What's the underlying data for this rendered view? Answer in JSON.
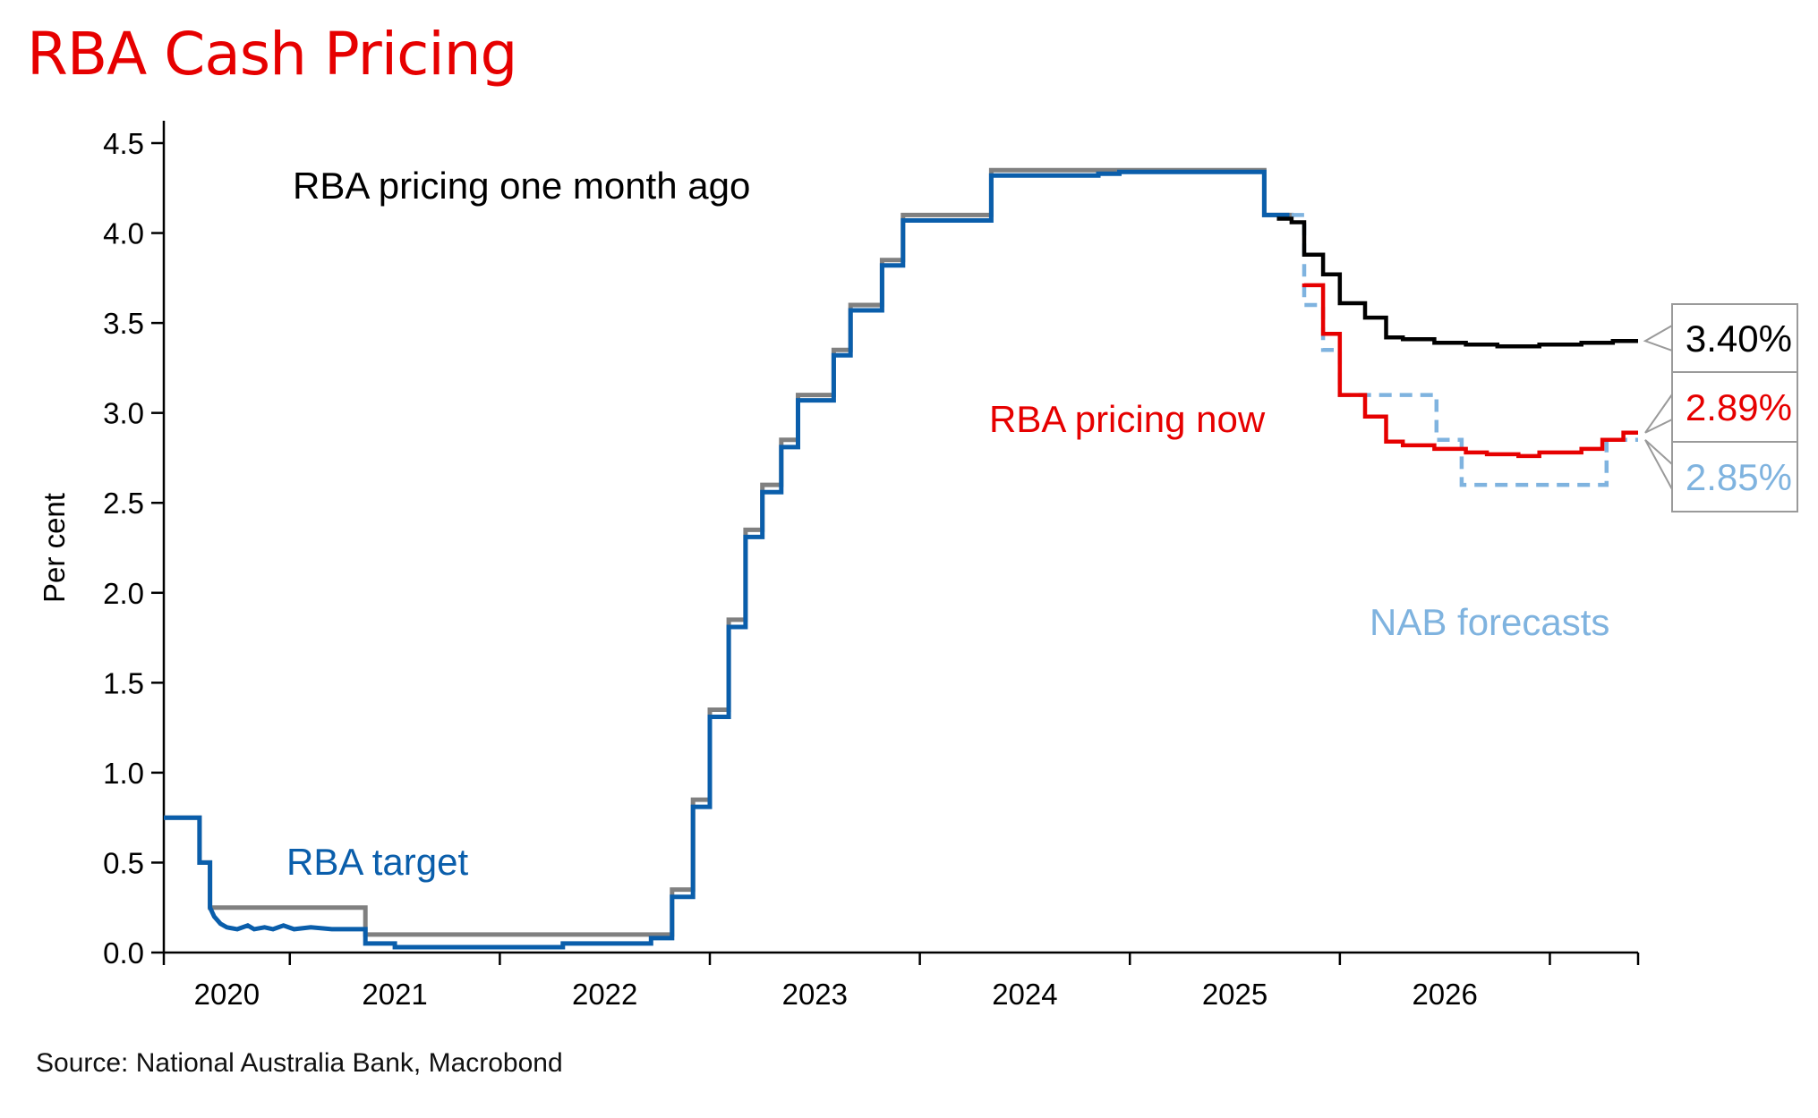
{
  "title": "RBA Cash Pricing",
  "source": "Source: National Australia Bank, Macrobond",
  "chart_data": {
    "type": "line",
    "title": "RBA Cash Pricing",
    "ylabel": "Per cent",
    "xlabel": "",
    "ylim": [
      0,
      4.5
    ],
    "xlim": [
      2019.9,
      2026.92
    ],
    "yticks": [
      "0.0",
      "0.5",
      "1.0",
      "1.5",
      "2.0",
      "2.5",
      "3.0",
      "3.5",
      "4.0",
      "4.5"
    ],
    "xticks": [
      "2020",
      "2021",
      "2022",
      "2023",
      "2024",
      "2025",
      "2026"
    ],
    "grid": false,
    "colors": {
      "rba_target": "#0a5eab",
      "pricing_month_ago": "#000000",
      "pricing_now": "#e60000",
      "nab_forecasts": "#7fb3df",
      "gray": "#808080",
      "title": "#e60000"
    },
    "annotations": {
      "rba_target": "RBA target",
      "pricing_month_ago": "RBA pricing one month ago",
      "pricing_now": "RBA pricing now",
      "nab_forecasts": "NAB forecasts"
    },
    "end_labels": {
      "pricing_month_ago": "3.40%",
      "pricing_now": "2.89%",
      "nab_forecasts": "2.85%"
    },
    "series": [
      {
        "key": "rba_target_gray",
        "style": "step",
        "points": [
          [
            2019.9,
            0.75
          ],
          [
            2020.07,
            0.75
          ],
          [
            2020.07,
            0.5
          ],
          [
            2020.12,
            0.5
          ],
          [
            2020.12,
            0.25
          ],
          [
            2020.86,
            0.25
          ],
          [
            2020.86,
            0.1
          ],
          [
            2021.12,
            0.1
          ],
          [
            2022.32,
            0.1
          ],
          [
            2022.32,
            0.35
          ],
          [
            2022.42,
            0.35
          ],
          [
            2022.42,
            0.85
          ],
          [
            2022.5,
            0.85
          ],
          [
            2022.5,
            1.35
          ],
          [
            2022.59,
            1.35
          ],
          [
            2022.59,
            1.85
          ],
          [
            2022.67,
            1.85
          ],
          [
            2022.67,
            2.35
          ],
          [
            2022.75,
            2.35
          ],
          [
            2022.75,
            2.6
          ],
          [
            2022.84,
            2.6
          ],
          [
            2022.84,
            2.85
          ],
          [
            2022.92,
            2.85
          ],
          [
            2022.92,
            3.1
          ],
          [
            2023.09,
            3.1
          ],
          [
            2023.09,
            3.35
          ],
          [
            2023.17,
            3.35
          ],
          [
            2023.17,
            3.6
          ],
          [
            2023.32,
            3.6
          ],
          [
            2023.32,
            3.85
          ],
          [
            2023.42,
            3.85
          ],
          [
            2023.42,
            4.1
          ],
          [
            2023.84,
            4.1
          ],
          [
            2023.84,
            4.35
          ],
          [
            2025.14,
            4.35
          ],
          [
            2025.14,
            4.1
          ],
          [
            2025.28,
            4.1
          ]
        ]
      },
      {
        "key": "rba_target",
        "style": "step",
        "points": [
          [
            2019.9,
            0.75
          ],
          [
            2020.07,
            0.75
          ],
          [
            2020.07,
            0.5
          ],
          [
            2020.12,
            0.5
          ],
          [
            2020.12,
            0.25
          ],
          [
            2020.14,
            0.2
          ],
          [
            2020.17,
            0.16
          ],
          [
            2020.2,
            0.14
          ],
          [
            2020.25,
            0.13
          ],
          [
            2020.3,
            0.15
          ],
          [
            2020.33,
            0.13
          ],
          [
            2020.38,
            0.14
          ],
          [
            2020.42,
            0.13
          ],
          [
            2020.47,
            0.15
          ],
          [
            2020.52,
            0.13
          ],
          [
            2020.6,
            0.14
          ],
          [
            2020.7,
            0.13
          ],
          [
            2020.86,
            0.13
          ],
          [
            2020.86,
            0.05
          ],
          [
            2021.0,
            0.05
          ],
          [
            2021.0,
            0.03
          ],
          [
            2021.8,
            0.03
          ],
          [
            2021.8,
            0.05
          ],
          [
            2022.22,
            0.05
          ],
          [
            2022.22,
            0.08
          ],
          [
            2022.32,
            0.08
          ],
          [
            2022.32,
            0.31
          ],
          [
            2022.42,
            0.31
          ],
          [
            2022.42,
            0.81
          ],
          [
            2022.5,
            0.81
          ],
          [
            2022.5,
            1.31
          ],
          [
            2022.59,
            1.31
          ],
          [
            2022.59,
            1.81
          ],
          [
            2022.67,
            1.81
          ],
          [
            2022.67,
            2.31
          ],
          [
            2022.75,
            2.31
          ],
          [
            2022.75,
            2.56
          ],
          [
            2022.84,
            2.56
          ],
          [
            2022.84,
            2.81
          ],
          [
            2022.92,
            2.81
          ],
          [
            2022.92,
            3.07
          ],
          [
            2023.09,
            3.07
          ],
          [
            2023.09,
            3.32
          ],
          [
            2023.17,
            3.32
          ],
          [
            2023.17,
            3.57
          ],
          [
            2023.32,
            3.57
          ],
          [
            2023.32,
            3.82
          ],
          [
            2023.42,
            3.82
          ],
          [
            2023.42,
            4.07
          ],
          [
            2023.84,
            4.07
          ],
          [
            2023.84,
            4.32
          ],
          [
            2024.35,
            4.32
          ],
          [
            2024.35,
            4.33
          ],
          [
            2024.45,
            4.33
          ],
          [
            2024.45,
            4.34
          ],
          [
            2025.14,
            4.34
          ],
          [
            2025.14,
            4.1
          ],
          [
            2025.26,
            4.1
          ]
        ]
      },
      {
        "key": "pricing_month_ago",
        "style": "step",
        "points": [
          [
            2025.2,
            4.08
          ],
          [
            2025.27,
            4.08
          ],
          [
            2025.27,
            4.06
          ],
          [
            2025.33,
            4.06
          ],
          [
            2025.33,
            3.88
          ],
          [
            2025.42,
            3.88
          ],
          [
            2025.42,
            3.77
          ],
          [
            2025.5,
            3.77
          ],
          [
            2025.5,
            3.61
          ],
          [
            2025.62,
            3.61
          ],
          [
            2025.62,
            3.53
          ],
          [
            2025.72,
            3.53
          ],
          [
            2025.72,
            3.42
          ],
          [
            2025.8,
            3.42
          ],
          [
            2025.8,
            3.41
          ],
          [
            2025.95,
            3.41
          ],
          [
            2025.95,
            3.39
          ],
          [
            2026.1,
            3.39
          ],
          [
            2026.1,
            3.38
          ],
          [
            2026.25,
            3.38
          ],
          [
            2026.25,
            3.37
          ],
          [
            2026.45,
            3.37
          ],
          [
            2026.45,
            3.38
          ],
          [
            2026.65,
            3.38
          ],
          [
            2026.65,
            3.39
          ],
          [
            2026.8,
            3.39
          ],
          [
            2026.8,
            3.4
          ],
          [
            2026.92,
            3.4
          ]
        ]
      },
      {
        "key": "pricing_now",
        "style": "step",
        "points": [
          [
            2025.33,
            3.72
          ],
          [
            2025.33,
            3.71
          ],
          [
            2025.42,
            3.71
          ],
          [
            2025.42,
            3.44
          ],
          [
            2025.5,
            3.44
          ],
          [
            2025.5,
            3.1
          ],
          [
            2025.62,
            3.1
          ],
          [
            2025.62,
            2.98
          ],
          [
            2025.72,
            2.98
          ],
          [
            2025.72,
            2.84
          ],
          [
            2025.8,
            2.84
          ],
          [
            2025.8,
            2.82
          ],
          [
            2025.95,
            2.82
          ],
          [
            2025.95,
            2.8
          ],
          [
            2026.1,
            2.8
          ],
          [
            2026.1,
            2.78
          ],
          [
            2026.2,
            2.78
          ],
          [
            2026.2,
            2.77
          ],
          [
            2026.35,
            2.77
          ],
          [
            2026.35,
            2.76
          ],
          [
            2026.45,
            2.76
          ],
          [
            2026.45,
            2.78
          ],
          [
            2026.65,
            2.78
          ],
          [
            2026.65,
            2.8
          ],
          [
            2026.75,
            2.8
          ],
          [
            2026.75,
            2.85
          ],
          [
            2026.85,
            2.85
          ],
          [
            2026.85,
            2.89
          ],
          [
            2026.92,
            2.89
          ]
        ]
      },
      {
        "key": "nab_forecasts",
        "style": "step-dashed",
        "points": [
          [
            2025.27,
            4.1
          ],
          [
            2025.33,
            4.1
          ],
          [
            2025.33,
            3.6
          ],
          [
            2025.42,
            3.6
          ],
          [
            2025.42,
            3.35
          ],
          [
            2025.5,
            3.35
          ],
          [
            2025.5,
            3.1
          ],
          [
            2025.96,
            3.1
          ],
          [
            2025.96,
            2.85
          ],
          [
            2026.08,
            2.85
          ],
          [
            2026.08,
            2.6
          ],
          [
            2026.77,
            2.6
          ],
          [
            2026.77,
            2.85
          ],
          [
            2026.92,
            2.85
          ]
        ]
      }
    ]
  }
}
